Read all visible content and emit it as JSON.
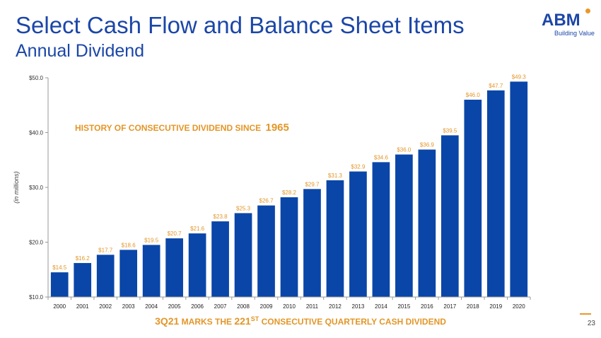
{
  "slide": {
    "title": "Select Cash Flow and Balance Sheet Items",
    "subtitle": "Annual Dividend",
    "page_number": "23"
  },
  "logo": {
    "word": "ABM",
    "tagline": "Building Value"
  },
  "headline": {
    "text": "HISTORY OF CONSECUTIVE DIVIDEND SINCE",
    "year": "1965"
  },
  "footnote": {
    "lead": "3Q21",
    "part1": "MARKS THE",
    "count": "221",
    "suffix": "ST",
    "part2": "CONSECUTIVE QUARTERLY CASH DIVIDEND"
  },
  "colors": {
    "bar": "#0a46a8",
    "label": "#e39628",
    "title": "#1b46a8",
    "axis": "#666666"
  },
  "chart_data": {
    "type": "bar",
    "categories": [
      "2000",
      "2001",
      "2002",
      "2003",
      "2004",
      "2005",
      "2006",
      "2007",
      "2008",
      "2009",
      "2010",
      "2011",
      "2012",
      "2013",
      "2014",
      "2015",
      "2016",
      "2017",
      "2018",
      "2019",
      "2020"
    ],
    "values": [
      14.5,
      16.2,
      17.7,
      18.6,
      19.5,
      20.7,
      21.6,
      23.8,
      25.3,
      26.7,
      28.2,
      29.7,
      31.3,
      32.9,
      34.6,
      36.0,
      36.9,
      39.5,
      46.0,
      47.7,
      49.3
    ],
    "data_labels": [
      "$14.5",
      "$16.2",
      "$17.7",
      "$18.6",
      "$19.5",
      "$20.7",
      "$21.6",
      "$23.8",
      "$25.3",
      "$26.7",
      "$28.2",
      "$29.7",
      "$31.3",
      "$32.9",
      "$34.6",
      "$36.0",
      "$36.9",
      "$39.5",
      "$46.0",
      "$47.7",
      "$49.3"
    ],
    "ylabel": "(in millions)",
    "ylim": [
      10,
      50
    ],
    "yticks": [
      10,
      20,
      30,
      40,
      50
    ],
    "ytick_labels": [
      "$10.0",
      "$20.0",
      "$30.0",
      "$40.0",
      "$50.0"
    ],
    "grid": false,
    "legend": "none"
  }
}
